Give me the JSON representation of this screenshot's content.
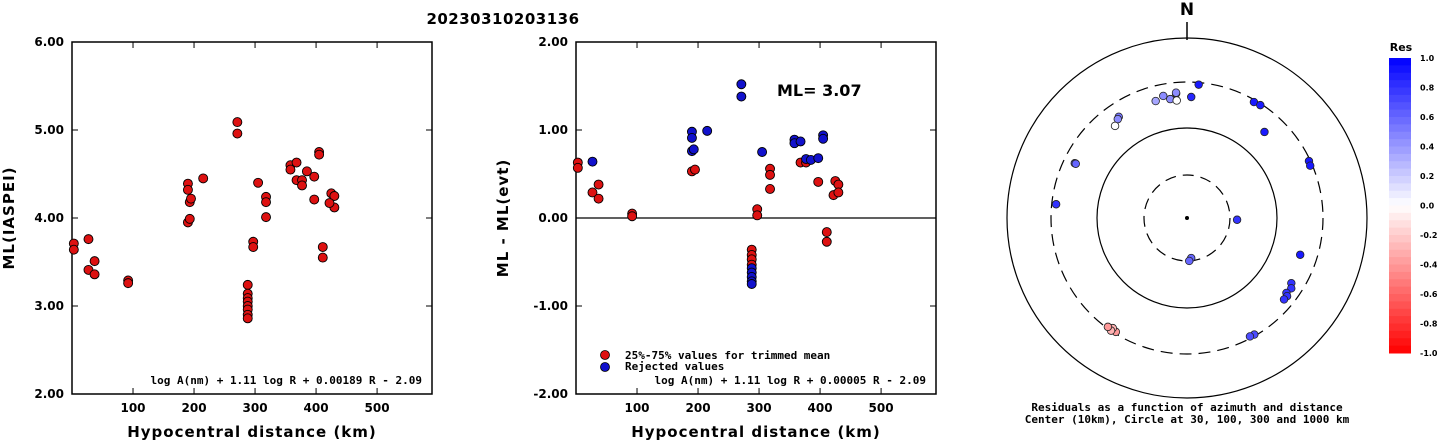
{
  "title": "20230310203136",
  "chart_data": [
    {
      "type": "scatter",
      "xlabel": "Hypocentral distance (km)",
      "ylabel": "ML(IASPEI)",
      "xlim": [
        0,
        590
      ],
      "ylim": [
        2.0,
        6.0
      ],
      "x_ticks": [
        "100",
        "200",
        "300",
        "400",
        "500"
      ],
      "y_ticks": [
        "2.00",
        "3.00",
        "4.00",
        "5.00",
        "6.00"
      ],
      "formula": "log A(nm) + 1.11 log R + 0.00189 R - 2.09",
      "point_color": "#dd1111",
      "points": [
        [
          3,
          3.71
        ],
        [
          3,
          3.64
        ],
        [
          27,
          3.76
        ],
        [
          27,
          3.41
        ],
        [
          37,
          3.51
        ],
        [
          37,
          3.36
        ],
        [
          92,
          3.29
        ],
        [
          92,
          3.26
        ],
        [
          190,
          4.39
        ],
        [
          190,
          4.32
        ],
        [
          190,
          3.95
        ],
        [
          193,
          4.18
        ],
        [
          193,
          3.99
        ],
        [
          195,
          4.22
        ],
        [
          215,
          4.45
        ],
        [
          271,
          5.09
        ],
        [
          271,
          4.96
        ],
        [
          288,
          3.24
        ],
        [
          288,
          3.14
        ],
        [
          288,
          3.09
        ],
        [
          288,
          3.05
        ],
        [
          288,
          3.0
        ],
        [
          288,
          2.96
        ],
        [
          288,
          2.9
        ],
        [
          288,
          2.86
        ],
        [
          297,
          3.73
        ],
        [
          297,
          3.67
        ],
        [
          305,
          4.4
        ],
        [
          318,
          4.24
        ],
        [
          318,
          4.18
        ],
        [
          318,
          4.01
        ],
        [
          358,
          4.6
        ],
        [
          358,
          4.55
        ],
        [
          368,
          4.63
        ],
        [
          368,
          4.43
        ],
        [
          377,
          4.43
        ],
        [
          377,
          4.37
        ],
        [
          385,
          4.53
        ],
        [
          397,
          4.47
        ],
        [
          397,
          4.21
        ],
        [
          405,
          4.75
        ],
        [
          405,
          4.72
        ],
        [
          411,
          3.67
        ],
        [
          411,
          3.55
        ],
        [
          425,
          4.28
        ],
        [
          430,
          4.25
        ],
        [
          430,
          4.12
        ],
        [
          422,
          4.17
        ]
      ]
    },
    {
      "type": "scatter",
      "xlabel": "Hypocentral distance (km)",
      "ylabel": "ML - ML(evt)",
      "xlim": [
        0,
        590
      ],
      "ylim": [
        -2.0,
        2.0
      ],
      "x_ticks": [
        "100",
        "200",
        "300",
        "400",
        "500"
      ],
      "y_ticks": [
        "-2.00",
        "-1.00",
        "0.00",
        "1.00",
        "2.00"
      ],
      "annotation": "ML= 3.07",
      "formula": "log A(nm) + 1.11 log R + 0.00005 R - 2.09",
      "legend": [
        {
          "label": "25%-75% values for trimmed mean",
          "color": "#dd1111"
        },
        {
          "label": "Rejected values",
          "color": "#1111cc"
        }
      ],
      "series": [
        {
          "name": "25%-75% values for trimmed mean",
          "color": "#dd1111",
          "points": [
            [
              3,
              0.63
            ],
            [
              3,
              0.57
            ],
            [
              27,
              0.29
            ],
            [
              37,
              0.38
            ],
            [
              37,
              0.22
            ],
            [
              92,
              0.05
            ],
            [
              92,
              0.02
            ],
            [
              190,
              0.53
            ],
            [
              195,
              0.55
            ],
            [
              288,
              -0.36
            ],
            [
              288,
              -0.42
            ],
            [
              288,
              -0.47
            ],
            [
              288,
              -0.53
            ],
            [
              297,
              0.1
            ],
            [
              297,
              0.03
            ],
            [
              318,
              0.56
            ],
            [
              318,
              0.49
            ],
            [
              318,
              0.33
            ],
            [
              368,
              0.63
            ],
            [
              377,
              0.63
            ],
            [
              397,
              0.41
            ],
            [
              411,
              -0.16
            ],
            [
              411,
              -0.27
            ],
            [
              425,
              0.42
            ],
            [
              422,
              0.26
            ],
            [
              430,
              0.38
            ],
            [
              430,
              0.29
            ]
          ]
        },
        {
          "name": "Rejected values",
          "color": "#1111cc",
          "points": [
            [
              27,
              0.64
            ],
            [
              190,
              0.98
            ],
            [
              190,
              0.91
            ],
            [
              190,
              0.76
            ],
            [
              193,
              0.78
            ],
            [
              215,
              0.99
            ],
            [
              271,
              1.52
            ],
            [
              271,
              1.38
            ],
            [
              288,
              -0.57
            ],
            [
              288,
              -0.62
            ],
            [
              288,
              -0.67
            ],
            [
              288,
              -0.72
            ],
            [
              288,
              -0.75
            ],
            [
              305,
              0.75
            ],
            [
              358,
              0.89
            ],
            [
              358,
              0.85
            ],
            [
              368,
              0.87
            ],
            [
              377,
              0.67
            ],
            [
              385,
              0.66
            ],
            [
              397,
              0.68
            ],
            [
              405,
              0.94
            ],
            [
              405,
              0.9
            ]
          ]
        }
      ]
    },
    {
      "type": "scatter",
      "title": "N",
      "caption_line1": "Residuals as a function of azimuth and distance",
      "caption_line2": "Center (10km), Circle at 30, 100, 300 and 1000 km",
      "colorbar_title": "Res",
      "colorbar_ticks": [
        "1.0",
        "0.8",
        "0.6",
        "0.4",
        "0.2",
        "0.0",
        "-0.2",
        "-0.4",
        "-0.6",
        "-0.8",
        "-1.0"
      ],
      "points_azimuth_distance_residual": [
        [
          345,
          210,
          0.35
        ],
        [
          349,
          227,
          0.45
        ],
        [
          352,
          205,
          0.45
        ],
        [
          355,
          230,
          0.5
        ],
        [
          355,
          235,
          0.45
        ],
        [
          355,
          195,
          0.0
        ],
        [
          2,
          210,
          0.85
        ],
        [
          5,
          285,
          0.9
        ],
        [
          30,
          285,
          0.9
        ],
        [
          33,
          290,
          0.9
        ],
        [
          42,
          185,
          0.9
        ],
        [
          65,
          290,
          0.9
        ],
        [
          67,
          285,
          0.9
        ],
        [
          92,
          36,
          0.8
        ],
        [
          108,
          200,
          0.9
        ],
        [
          122,
          220,
          0.8
        ],
        [
          124,
          235,
          0.8
        ],
        [
          127,
          228,
          0.8
        ],
        [
          128,
          242,
          0.8
        ],
        [
          130,
          240,
          0.8
        ],
        [
          150,
          290,
          0.7
        ],
        [
          152,
          287,
          0.7
        ],
        [
          174,
          28,
          0.6
        ],
        [
          177,
          30,
          0.6
        ],
        [
          212,
          288,
          -0.4
        ],
        [
          214,
          278,
          -0.3
        ],
        [
          214,
          299,
          -0.3
        ],
        [
          216,
          290,
          -0.4
        ],
        [
          276,
          270,
          0.8
        ],
        [
          296,
          230,
          0.6
        ],
        [
          296,
          224,
          0.6
        ],
        [
          326,
          215,
          0.55
        ],
        [
          325,
          208,
          0.45
        ],
        [
          322,
          190,
          0.0
        ]
      ]
    }
  ]
}
